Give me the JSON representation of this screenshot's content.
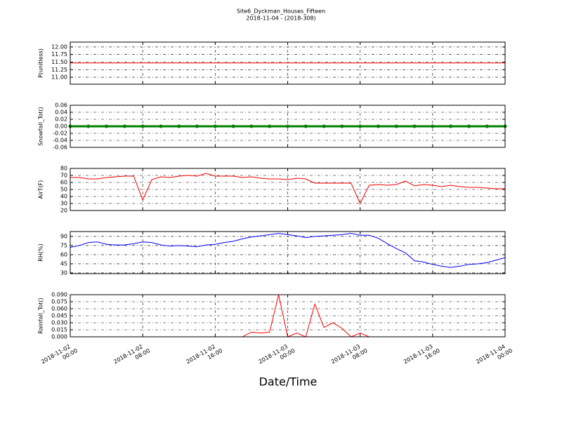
{
  "chart_data": [
    {
      "type": "line",
      "title": "Site6_Dyckman_Houses_Fifteen",
      "subtitle": "2018-11-04 - (2018-308)",
      "y_label": "P(unitless)",
      "color": "#ff0000",
      "x": [
        "2018-11-02 00:00",
        "2018-11-02 02:00",
        "2018-11-02 04:00",
        "2018-11-02 06:00",
        "2018-11-02 08:00",
        "2018-11-02 10:00",
        "2018-11-02 12:00",
        "2018-11-02 14:00",
        "2018-11-02 16:00",
        "2018-11-02 18:00",
        "2018-11-02 20:00",
        "2018-11-02 22:00",
        "2018-11-03 00:00",
        "2018-11-03 02:00",
        "2018-11-03 04:00",
        "2018-11-03 06:00",
        "2018-11-03 08:00",
        "2018-11-03 10:00",
        "2018-11-03 12:00",
        "2018-11-03 14:00",
        "2018-11-03 16:00",
        "2018-11-03 18:00",
        "2018-11-03 20:00",
        "2018-11-03 22:00",
        "2018-11-04 00:00"
      ],
      "values": [
        11.47,
        11.47,
        11.47,
        11.47,
        11.47,
        11.47,
        11.47,
        11.47,
        11.47,
        11.47,
        11.47,
        11.47,
        11.47,
        11.47,
        11.47,
        11.47,
        11.47,
        11.47,
        11.47,
        11.47,
        11.47,
        11.47,
        11.47,
        11.47,
        11.47
      ],
      "xlim": [
        "2018-11-02 00:00",
        "2018-11-04 00:00"
      ],
      "xticks": [
        "2018-11-02 00:00",
        "2018-11-02 08:00",
        "2018-11-02 16:00",
        "2018-11-03 00:00",
        "2018-11-03 08:00",
        "2018-11-03 16:00",
        "2018-11-04 00:00"
      ],
      "ylim": [
        10.77,
        12.16
      ],
      "yticks": [
        {
          "value": 11,
          "label": "11.00"
        },
        {
          "value": 11.25,
          "label": "11.25"
        },
        {
          "value": 11.5,
          "label": "11.50"
        },
        {
          "value": 11.75,
          "label": "11.75"
        },
        {
          "value": 12,
          "label": "12.00"
        }
      ],
      "grid": true
    },
    {
      "type": "line",
      "y_label": "Snowfall_Tot()",
      "color": "#008000",
      "markers": true,
      "x": [
        "2018-11-02 00:00",
        "2018-11-02 02:00",
        "2018-11-02 04:00",
        "2018-11-02 06:00",
        "2018-11-02 08:00",
        "2018-11-02 10:00",
        "2018-11-02 12:00",
        "2018-11-02 14:00",
        "2018-11-02 16:00",
        "2018-11-02 18:00",
        "2018-11-02 20:00",
        "2018-11-02 22:00",
        "2018-11-03 00:00",
        "2018-11-03 02:00",
        "2018-11-03 04:00",
        "2018-11-03 06:00",
        "2018-11-03 08:00",
        "2018-11-03 10:00",
        "2018-11-03 12:00",
        "2018-11-03 14:00",
        "2018-11-03 16:00",
        "2018-11-03 18:00",
        "2018-11-03 20:00",
        "2018-11-03 22:00",
        "2018-11-04 00:00"
      ],
      "values": [
        0,
        0,
        0,
        0,
        0,
        0,
        0,
        0,
        0,
        0,
        0,
        0,
        0,
        0,
        0,
        0,
        0,
        0,
        0,
        0,
        0,
        0,
        0,
        0,
        0
      ],
      "xlim": [
        "2018-11-02 00:00",
        "2018-11-04 00:00"
      ],
      "xticks": [
        "2018-11-02 00:00",
        "2018-11-02 08:00",
        "2018-11-02 16:00",
        "2018-11-03 00:00",
        "2018-11-03 08:00",
        "2018-11-03 16:00",
        "2018-11-04 00:00"
      ],
      "ylim": [
        -0.06,
        0.06
      ],
      "yticks": [
        -0.06,
        -0.04,
        -0.02,
        {
          "value": 0,
          "label": "0.00"
        },
        0.02,
        0.04,
        0.06
      ],
      "grid": true
    },
    {
      "type": "line",
      "y_label": "AirT(F)",
      "color": "#ff0000",
      "x": [
        "2018-11-02 00:00",
        "2018-11-02 01:00",
        "2018-11-02 02:00",
        "2018-11-02 03:00",
        "2018-11-02 04:00",
        "2018-11-02 05:00",
        "2018-11-02 06:00",
        "2018-11-02 07:00",
        "2018-11-02 08:00",
        "2018-11-02 09:00",
        "2018-11-02 10:00",
        "2018-11-02 11:00",
        "2018-11-02 12:00",
        "2018-11-02 13:00",
        "2018-11-02 14:00",
        "2018-11-02 15:00",
        "2018-11-02 16:00",
        "2018-11-02 17:00",
        "2018-11-02 18:00",
        "2018-11-02 19:00",
        "2018-11-02 20:00",
        "2018-11-02 21:00",
        "2018-11-02 22:00",
        "2018-11-02 23:00",
        "2018-11-03 00:00",
        "2018-11-03 01:00",
        "2018-11-03 02:00",
        "2018-11-03 03:00",
        "2018-11-03 04:00",
        "2018-11-03 05:00",
        "2018-11-03 06:00",
        "2018-11-03 07:00",
        "2018-11-03 08:00",
        "2018-11-03 09:00",
        "2018-11-03 10:00",
        "2018-11-03 11:00",
        "2018-11-03 12:00",
        "2018-11-03 13:00",
        "2018-11-03 14:00",
        "2018-11-03 15:00",
        "2018-11-03 16:00",
        "2018-11-03 17:00",
        "2018-11-03 18:00",
        "2018-11-03 19:00",
        "2018-11-03 20:00",
        "2018-11-03 21:00",
        "2018-11-03 22:00",
        "2018-11-03 23:00",
        "2018-11-04 00:00"
      ],
      "values": [
        67,
        67,
        65,
        65,
        67,
        68,
        69,
        69,
        35,
        64,
        68,
        67,
        69,
        70,
        69,
        73,
        69,
        69,
        69,
        67,
        68,
        66,
        65,
        65,
        64,
        66,
        65,
        59,
        59,
        59,
        59,
        59,
        30,
        56,
        57,
        56,
        57,
        62,
        55,
        57,
        56,
        54,
        56,
        54,
        53,
        53,
        52,
        51,
        51
      ],
      "xlim": [
        "2018-11-02 00:00",
        "2018-11-04 00:00"
      ],
      "xticks": [
        "2018-11-02 00:00",
        "2018-11-02 08:00",
        "2018-11-02 16:00",
        "2018-11-03 00:00",
        "2018-11-03 08:00",
        "2018-11-03 16:00",
        "2018-11-04 00:00"
      ],
      "ylim": [
        20,
        80
      ],
      "yticks": [
        20,
        30,
        40,
        50,
        60,
        70,
        80
      ],
      "grid": true
    },
    {
      "type": "line",
      "y_label": "RH(%)",
      "color": "#0000ff",
      "x": [
        "2018-11-02 00:00",
        "2018-11-02 01:00",
        "2018-11-02 02:00",
        "2018-11-02 03:00",
        "2018-11-02 04:00",
        "2018-11-02 05:00",
        "2018-11-02 06:00",
        "2018-11-02 07:00",
        "2018-11-02 08:00",
        "2018-11-02 09:00",
        "2018-11-02 10:00",
        "2018-11-02 11:00",
        "2018-11-02 12:00",
        "2018-11-02 13:00",
        "2018-11-02 14:00",
        "2018-11-02 15:00",
        "2018-11-02 16:00",
        "2018-11-02 17:00",
        "2018-11-02 18:00",
        "2018-11-02 19:00",
        "2018-11-02 20:00",
        "2018-11-02 21:00",
        "2018-11-02 22:00",
        "2018-11-02 23:00",
        "2018-11-03 00:00",
        "2018-11-03 01:00",
        "2018-11-03 02:00",
        "2018-11-03 03:00",
        "2018-11-03 04:00",
        "2018-11-03 05:00",
        "2018-11-03 06:00",
        "2018-11-03 07:00",
        "2018-11-03 08:00",
        "2018-11-03 09:00",
        "2018-11-03 10:00",
        "2018-11-03 11:00",
        "2018-11-03 12:00",
        "2018-11-03 13:00",
        "2018-11-03 14:00",
        "2018-11-03 15:00",
        "2018-11-03 16:00",
        "2018-11-03 17:00",
        "2018-11-03 18:00",
        "2018-11-03 19:00",
        "2018-11-03 20:00",
        "2018-11-03 21:00",
        "2018-11-03 22:00",
        "2018-11-03 23:00",
        "2018-11-04 00:00"
      ],
      "values": [
        72,
        75,
        80,
        81,
        77,
        76,
        76,
        78,
        81,
        80,
        76,
        74,
        75,
        74,
        73,
        76,
        77,
        80,
        82,
        86,
        89,
        91,
        93,
        95,
        93,
        91,
        88,
        90,
        91,
        92,
        93,
        95,
        92,
        92,
        87,
        78,
        70,
        63,
        50,
        48,
        44,
        41,
        39,
        41,
        44,
        45,
        47,
        51,
        55
      ],
      "xlim": [
        "2018-11-02 00:00",
        "2018-11-04 00:00"
      ],
      "xticks": [
        "2018-11-02 00:00",
        "2018-11-02 08:00",
        "2018-11-02 16:00",
        "2018-11-03 00:00",
        "2018-11-03 08:00",
        "2018-11-03 16:00",
        "2018-11-04 00:00"
      ],
      "ylim": [
        28.8,
        98
      ],
      "yticks": [
        30,
        45,
        60,
        75,
        90
      ],
      "grid": true
    },
    {
      "type": "line",
      "y_label": "Rainfall_Tot()",
      "x_label": "Date/Time",
      "color": "#ff0000",
      "x": [
        "2018-11-02 00:00",
        "2018-11-02 01:00",
        "2018-11-02 02:00",
        "2018-11-02 03:00",
        "2018-11-02 04:00",
        "2018-11-02 05:00",
        "2018-11-02 06:00",
        "2018-11-02 07:00",
        "2018-11-02 08:00",
        "2018-11-02 09:00",
        "2018-11-02 10:00",
        "2018-11-02 11:00",
        "2018-11-02 12:00",
        "2018-11-02 13:00",
        "2018-11-02 14:00",
        "2018-11-02 15:00",
        "2018-11-02 16:00",
        "2018-11-02 17:00",
        "2018-11-02 18:00",
        "2018-11-02 19:00",
        "2018-11-02 20:00",
        "2018-11-02 21:00",
        "2018-11-02 22:00",
        "2018-11-02 23:00",
        "2018-11-03 00:00",
        "2018-11-03 01:00",
        "2018-11-03 02:00",
        "2018-11-03 03:00",
        "2018-11-03 04:00",
        "2018-11-03 05:00",
        "2018-11-03 06:00",
        "2018-11-03 07:00",
        "2018-11-03 08:00",
        "2018-11-03 09:00",
        "2018-11-03 10:00",
        "2018-11-03 11:00",
        "2018-11-03 12:00",
        "2018-11-03 13:00",
        "2018-11-03 14:00",
        "2018-11-03 15:00",
        "2018-11-03 16:00",
        "2018-11-03 17:00",
        "2018-11-03 18:00",
        "2018-11-03 19:00",
        "2018-11-03 20:00",
        "2018-11-03 21:00",
        "2018-11-03 22:00",
        "2018-11-03 23:00",
        "2018-11-04 00:00"
      ],
      "values": [
        0,
        0,
        0,
        0,
        0,
        0,
        0,
        0,
        0,
        0,
        0,
        0,
        0,
        0,
        0,
        0,
        0,
        0,
        0,
        0,
        0.01,
        0.008,
        0.01,
        0.09,
        0,
        0.008,
        0,
        0.07,
        0.02,
        0.03,
        0.018,
        0,
        0.008,
        0,
        0,
        0,
        0,
        0,
        0,
        0,
        0,
        0,
        0,
        0,
        0,
        0,
        0,
        0,
        0
      ],
      "xlim": [
        "2018-11-02 00:00",
        "2018-11-04 00:00"
      ],
      "xticks": [
        {
          "value": "2018-11-02 00:00",
          "label": [
            "2018-11-02",
            "00:00"
          ]
        },
        {
          "value": "2018-11-02 08:00",
          "label": [
            "2018-11-02",
            "08:00"
          ]
        },
        {
          "value": "2018-11-02 16:00",
          "label": [
            "2018-11-02",
            "16:00"
          ]
        },
        {
          "value": "2018-11-03 00:00",
          "label": [
            "2018-11-03",
            "00:00"
          ]
        },
        {
          "value": "2018-11-03 08:00",
          "label": [
            "2018-11-03",
            "08:00"
          ]
        },
        {
          "value": "2018-11-03 16:00",
          "label": [
            "2018-11-03",
            "16:00"
          ]
        },
        {
          "value": "2018-11-04 00:00",
          "label": [
            "2018-11-04",
            "00:00"
          ]
        }
      ],
      "ylim": [
        0,
        0.09
      ],
      "yticks": [
        {
          "value": 0,
          "label": "0.000"
        },
        0.015,
        {
          "value": 0.03,
          "label": "0.030"
        },
        0.045,
        {
          "value": 0.06,
          "label": "0.060"
        },
        0.075,
        {
          "value": 0.09,
          "label": "0.090"
        }
      ],
      "grid": true
    }
  ]
}
